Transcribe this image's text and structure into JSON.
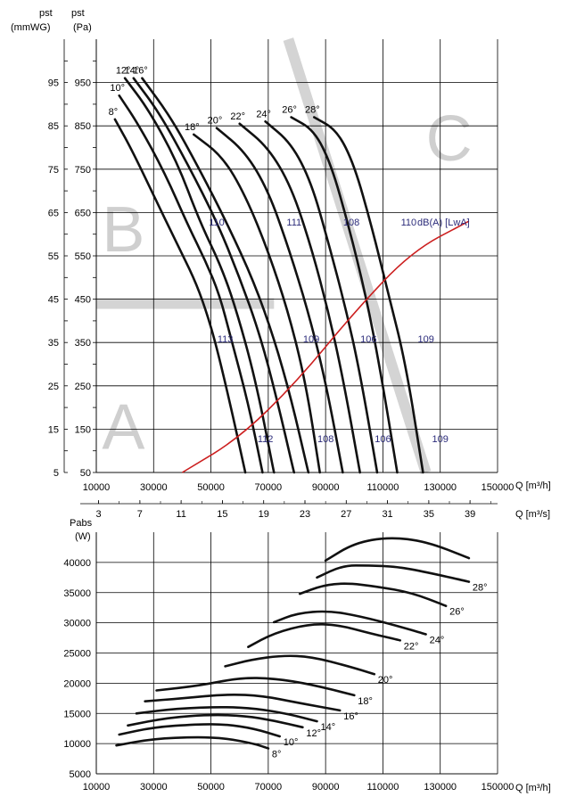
{
  "chart_data": [
    {
      "type": "line",
      "title": "",
      "ylabel_left": "pst",
      "ylabel_left_unit": "(mmWG)",
      "ylabel_right": "pst",
      "ylabel_right_unit": "(Pa)",
      "xlabel": "Q [m³/h]",
      "xlabel_secondary": "Q [m³/s]",
      "xlim": [
        10000,
        150000
      ],
      "ylim_pa": [
        50,
        1050
      ],
      "x_ticks": [
        "10000",
        "30000",
        "50000",
        "70000",
        "90000",
        "110000",
        "130000",
        "150000"
      ],
      "x_ticks_secondary": [
        "3",
        "7",
        "11",
        "15",
        "19",
        "23",
        "27",
        "31",
        "35",
        "39"
      ],
      "y_ticks_mmwg": [
        "95",
        "85",
        "75",
        "65",
        "55",
        "45",
        "35",
        "25",
        "15",
        "5"
      ],
      "y_ticks_pa": [
        "950",
        "850",
        "750",
        "650",
        "550",
        "450",
        "350",
        "250",
        "150",
        "50"
      ],
      "zones": [
        "A",
        "B",
        "C"
      ],
      "noise_unit_label": "dB(A) [LwA]",
      "noise_labels": [
        "110",
        "111",
        "108",
        "110",
        "113",
        "109",
        "106",
        "109",
        "112",
        "108",
        "106",
        "109"
      ],
      "series": [
        {
          "name": "8°",
          "x": [
            16500,
            22000,
            30000,
            38000,
            44000,
            48000,
            52000,
            57000,
            62000
          ],
          "y": [
            865,
            800,
            690,
            580,
            500,
            430,
            340,
            200,
            50
          ]
        },
        {
          "name": "10°",
          "x": [
            18000,
            25000,
            34000,
            42000,
            48000,
            53000,
            57000,
            63000,
            68000
          ],
          "y": [
            920,
            850,
            740,
            620,
            540,
            460,
            360,
            210,
            50
          ]
        },
        {
          "name": "12°",
          "x": [
            20000,
            28000,
            38000,
            46000,
            54000,
            60000,
            66000,
            72000
          ],
          "y": [
            960,
            890,
            770,
            630,
            520,
            400,
            250,
            50
          ]
        },
        {
          "name": "14°",
          "x": [
            23000,
            32000,
            42000,
            52000,
            60000,
            67000,
            73000,
            79000
          ],
          "y": [
            960,
            880,
            760,
            630,
            500,
            370,
            220,
            50
          ]
        },
        {
          "name": "16°",
          "x": [
            26000,
            36000,
            46000,
            56000,
            65000,
            72000,
            78000,
            84000
          ],
          "y": [
            960,
            870,
            750,
            620,
            490,
            360,
            220,
            50
          ]
        },
        {
          "name": "18°",
          "x": [
            44000,
            54000,
            62000,
            70000,
            77000,
            83000,
            88000
          ],
          "y": [
            830,
            780,
            690,
            560,
            420,
            260,
            50
          ]
        },
        {
          "name": "20°",
          "x": [
            52000,
            62000,
            70000,
            77000,
            84000,
            90000,
            96000
          ],
          "y": [
            845,
            790,
            700,
            570,
            420,
            260,
            50
          ]
        },
        {
          "name": "22°",
          "x": [
            60000,
            70000,
            78000,
            85000,
            91000,
            96000,
            102000
          ],
          "y": [
            855,
            800,
            710,
            570,
            420,
            270,
            50
          ]
        },
        {
          "name": "24°",
          "x": [
            69000,
            78000,
            85000,
            91000,
            97000,
            102000,
            108000
          ],
          "y": [
            860,
            810,
            720,
            580,
            430,
            280,
            50
          ]
        },
        {
          "name": "26°",
          "x": [
            78000,
            86000,
            92000,
            98000,
            104000,
            109000,
            115000
          ],
          "y": [
            870,
            840,
            760,
            620,
            460,
            290,
            50
          ]
        },
        {
          "name": "28°",
          "x": [
            86000,
            94000,
            100000,
            106000,
            112000,
            118000,
            124000
          ],
          "y": [
            870,
            840,
            760,
            620,
            460,
            300,
            50
          ]
        }
      ],
      "system_curve": {
        "name": "system",
        "x": [
          40000,
          60000,
          80000,
          100000,
          120000,
          140000
        ],
        "y": [
          50,
          130,
          260,
          420,
          560,
          630
        ]
      }
    },
    {
      "type": "line",
      "title": "",
      "ylabel": "Pabs",
      "ylabel_unit": "(W)",
      "xlabel": "Q [m³/h]",
      "xlim": [
        10000,
        150000
      ],
      "ylim": [
        5000,
        45000
      ],
      "x_ticks": [
        "10000",
        "30000",
        "50000",
        "70000",
        "90000",
        "110000",
        "130000",
        "150000"
      ],
      "y_ticks": [
        "40000",
        "35000",
        "30000",
        "25000",
        "20000",
        "15000",
        "10000",
        "5000"
      ],
      "series": [
        {
          "name": "8°",
          "x": [
            17000,
            30000,
            45000,
            55000,
            65000,
            70000
          ],
          "y": [
            9700,
            10800,
            11100,
            10900,
            10000,
            9200
          ]
        },
        {
          "name": "10°",
          "x": [
            18000,
            30000,
            45000,
            55000,
            65000,
            74000
          ],
          "y": [
            11500,
            12700,
            13200,
            13200,
            12500,
            11200
          ]
        },
        {
          "name": "12°",
          "x": [
            21000,
            35000,
            50000,
            62000,
            72000,
            82000
          ],
          "y": [
            13000,
            14300,
            14800,
            14600,
            13800,
            12700
          ]
        },
        {
          "name": "14°",
          "x": [
            24000,
            38000,
            54000,
            66000,
            77000,
            87000
          ],
          "y": [
            15000,
            15800,
            16100,
            15800,
            14900,
            13700
          ]
        },
        {
          "name": "16°",
          "x": [
            27000,
            40000,
            56000,
            68000,
            80000,
            95000
          ],
          "y": [
            17000,
            17500,
            18200,
            17900,
            16800,
            15500
          ]
        },
        {
          "name": "18°",
          "x": [
            31000,
            46000,
            60000,
            72000,
            85000,
            100000
          ],
          "y": [
            18800,
            19600,
            20900,
            20800,
            19800,
            18000
          ]
        },
        {
          "name": "20°",
          "x": [
            55000,
            64000,
            75000,
            85000,
            98000,
            107000
          ],
          "y": [
            22800,
            23900,
            24600,
            24400,
            22800,
            21500
          ]
        },
        {
          "name": "22°",
          "x": [
            63000,
            72000,
            84000,
            94000,
            106000,
            116000
          ],
          "y": [
            26000,
            28300,
            29800,
            29700,
            28200,
            27100
          ]
        },
        {
          "name": "24°",
          "x": [
            72000,
            80000,
            91000,
            102000,
            115000,
            125000
          ],
          "y": [
            30100,
            31600,
            32000,
            31100,
            29500,
            28100
          ]
        },
        {
          "name": "26°",
          "x": [
            81000,
            89000,
            97000,
            108000,
            120000,
            132000
          ],
          "y": [
            34800,
            36200,
            36600,
            36000,
            35000,
            32800
          ]
        },
        {
          "name": "28°",
          "x": [
            87000,
            96000,
            105000,
            115000,
            125000,
            140000
          ],
          "y": [
            37500,
            39500,
            39500,
            39300,
            38400,
            36800
          ]
        },
        {
          "name": "28°b",
          "x": [
            90000,
            100000,
            112000,
            125000,
            140000
          ],
          "y": [
            40300,
            43200,
            44200,
            43500,
            40700
          ]
        }
      ]
    }
  ],
  "labels": {
    "top_unit_left": "(mmWG)",
    "top_unit_right": "(Pa)",
    "top_p_left": "pst",
    "top_p_right": "pst",
    "bottom_p": "Pabs",
    "bottom_unit": "(W)",
    "x_unit": "Q [m³/h]",
    "x_unit_s": "Q [m³/s]"
  },
  "colors": {
    "curve": "#111111",
    "system_curve": "#cc1f1f",
    "noise_text": "#2b2b7a",
    "zone": "#cfcfcf",
    "grid": "#000000"
  }
}
